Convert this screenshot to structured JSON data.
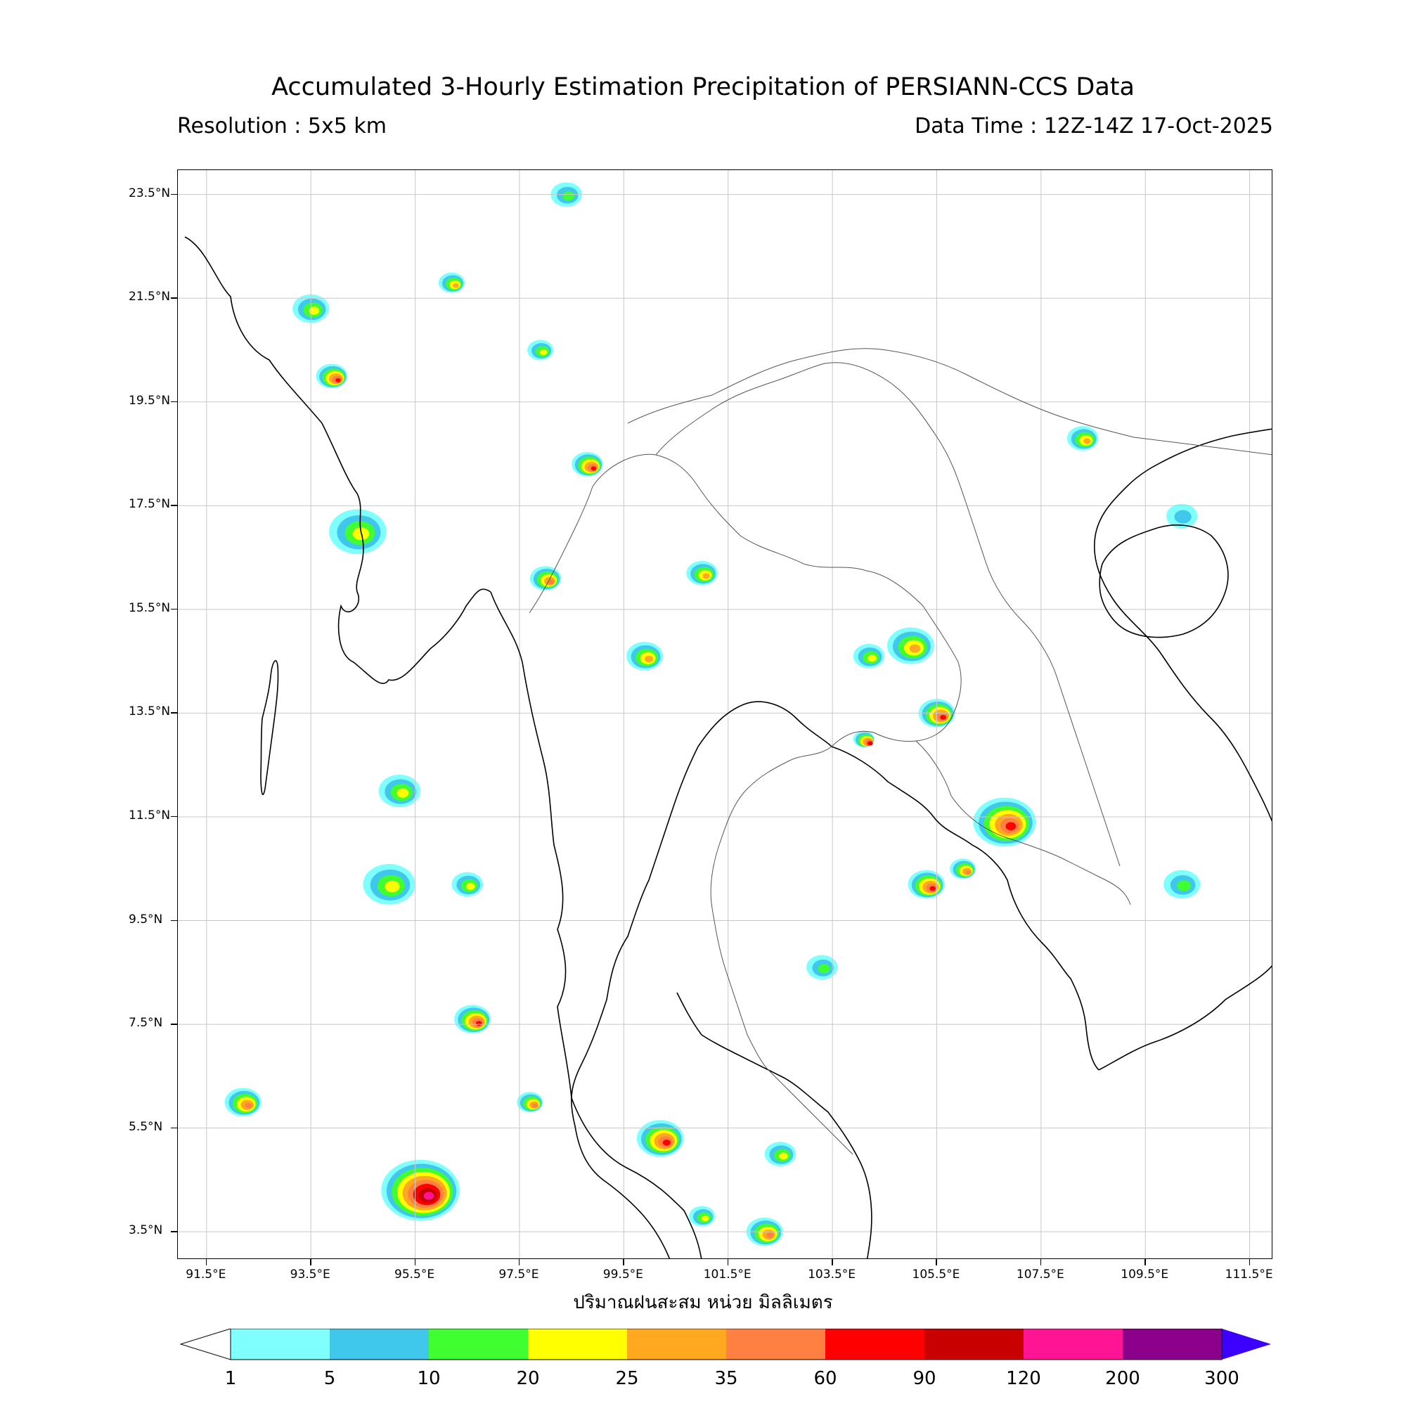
{
  "header": {
    "title": "Accumulated 3-Hourly Estimation Precipitation of PERSIANN-CCS Data",
    "resolution": "Resolution : 5x5 km",
    "data_time": "Data Time : 12Z-14Z 17-Oct-2025"
  },
  "axes": {
    "lat_labels": [
      "23.5°N",
      "21.5°N",
      "19.5°N",
      "17.5°N",
      "15.5°N",
      "13.5°N",
      "11.5°N",
      "9.5°N",
      "7.5°N",
      "5.5°N",
      "3.5°N"
    ],
    "lon_labels": [
      "91.5°E",
      "93.5°E",
      "95.5°E",
      "97.5°E",
      "99.5°E",
      "101.5°E",
      "103.5°E",
      "105.5°E",
      "107.5°E",
      "109.5°E",
      "111.5°E"
    ],
    "grid": true
  },
  "colorbar": {
    "units_label": "ปริมาณฝนสะสม หน่วย มิลลิเมตร",
    "levels": [
      "1",
      "5",
      "10",
      "20",
      "25",
      "35",
      "60",
      "90",
      "120",
      "200",
      "300"
    ],
    "colors": [
      "#80ffff",
      "#40c8ec",
      "#40ff30",
      "#ffff00",
      "#ffa820",
      "#ff8040",
      "#ff0000",
      "#c80000",
      "#ff1493",
      "#8b008b"
    ],
    "under_color": "#ffffff",
    "over_color": "#3c00ff"
  },
  "rain_cells": [
    {
      "lon": 95.6,
      "lat": 4.3,
      "r": 0.75,
      "level": 8
    },
    {
      "lon": 106.8,
      "lat": 11.4,
      "r": 0.6,
      "level": 6
    },
    {
      "lon": 105.3,
      "lat": 10.2,
      "r": 0.35,
      "level": 6
    },
    {
      "lon": 106.0,
      "lat": 10.5,
      "r": 0.25,
      "level": 5
    },
    {
      "lon": 105.5,
      "lat": 13.5,
      "r": 0.35,
      "level": 6
    },
    {
      "lon": 105.0,
      "lat": 14.8,
      "r": 0.45,
      "level": 4
    },
    {
      "lon": 104.2,
      "lat": 14.6,
      "r": 0.3,
      "level": 3
    },
    {
      "lon": 100.2,
      "lat": 5.3,
      "r": 0.45,
      "level": 6
    },
    {
      "lon": 102.2,
      "lat": 3.5,
      "r": 0.35,
      "level": 5
    },
    {
      "lon": 101.0,
      "lat": 3.8,
      "r": 0.25,
      "level": 3
    },
    {
      "lon": 98.8,
      "lat": 18.3,
      "r": 0.3,
      "level": 6
    },
    {
      "lon": 101.0,
      "lat": 16.2,
      "r": 0.3,
      "level": 4
    },
    {
      "lon": 99.9,
      "lat": 14.6,
      "r": 0.35,
      "level": 4
    },
    {
      "lon": 98.0,
      "lat": 16.1,
      "r": 0.3,
      "level": 5
    },
    {
      "lon": 94.4,
      "lat": 17.0,
      "r": 0.55,
      "level": 3
    },
    {
      "lon": 93.9,
      "lat": 20.0,
      "r": 0.3,
      "level": 6
    },
    {
      "lon": 93.5,
      "lat": 21.3,
      "r": 0.35,
      "level": 3
    },
    {
      "lon": 95.0,
      "lat": 10.2,
      "r": 0.5,
      "level": 3
    },
    {
      "lon": 95.2,
      "lat": 12.0,
      "r": 0.4,
      "level": 3
    },
    {
      "lon": 96.6,
      "lat": 7.6,
      "r": 0.35,
      "level": 6
    },
    {
      "lon": 92.2,
      "lat": 6.0,
      "r": 0.35,
      "level": 5
    },
    {
      "lon": 108.3,
      "lat": 18.8,
      "r": 0.3,
      "level": 4
    },
    {
      "lon": 96.5,
      "lat": 10.2,
      "r": 0.3,
      "level": 3
    },
    {
      "lon": 97.9,
      "lat": 20.5,
      "r": 0.25,
      "level": 3
    },
    {
      "lon": 96.2,
      "lat": 21.8,
      "r": 0.25,
      "level": 4
    },
    {
      "lon": 98.4,
      "lat": 23.5,
      "r": 0.3,
      "level": 2
    },
    {
      "lon": 97.7,
      "lat": 6.0,
      "r": 0.25,
      "level": 5
    },
    {
      "lon": 104.1,
      "lat": 13.0,
      "r": 0.2,
      "level": 7
    },
    {
      "lon": 103.3,
      "lat": 8.6,
      "r": 0.3,
      "level": 2
    },
    {
      "lon": 102.5,
      "lat": 5.0,
      "r": 0.3,
      "level": 3
    },
    {
      "lon": 110.2,
      "lat": 10.2,
      "r": 0.35,
      "level": 2
    },
    {
      "lon": 110.2,
      "lat": 17.3,
      "r": 0.3,
      "level": 1
    }
  ]
}
